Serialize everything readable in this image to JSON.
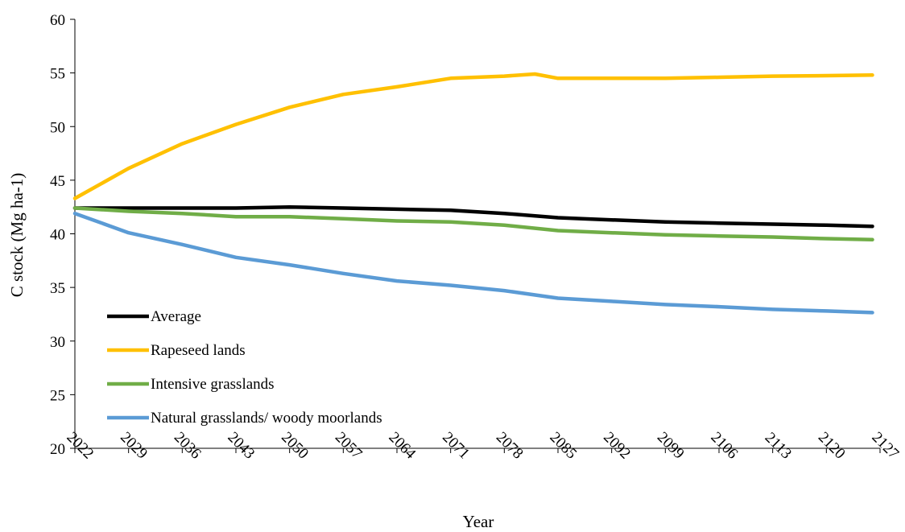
{
  "chart_data": {
    "type": "line",
    "title": "",
    "xlabel": "Year",
    "ylabel": "C stock (Mg ha-1)",
    "xlim": [
      2022,
      2127
    ],
    "ylim": [
      20,
      60
    ],
    "x_ticks": [
      2022,
      2029,
      2036,
      2043,
      2050,
      2057,
      2064,
      2071,
      2078,
      2085,
      2092,
      2099,
      2106,
      2113,
      2120,
      2127
    ],
    "y_ticks": [
      20,
      25,
      30,
      35,
      40,
      45,
      50,
      55,
      60
    ],
    "grid": false,
    "legend_position": "bottom-left",
    "series": [
      {
        "name": "Average",
        "color": "#000000",
        "x": [
          2022,
          2029,
          2036,
          2043,
          2050,
          2057,
          2064,
          2071,
          2078,
          2085,
          2092,
          2099,
          2106,
          2113,
          2120,
          2126
        ],
        "values": [
          42.4,
          42.4,
          42.4,
          42.4,
          42.5,
          42.4,
          42.3,
          42.2,
          41.9,
          41.5,
          41.3,
          41.1,
          41.0,
          40.9,
          40.8,
          40.7
        ]
      },
      {
        "name": "Rapeseed lands",
        "color": "#FFC000",
        "x": [
          2022,
          2029,
          2036,
          2043,
          2050,
          2057,
          2064,
          2071,
          2078,
          2082,
          2085,
          2092,
          2099,
          2106,
          2113,
          2120,
          2126
        ],
        "values": [
          43.3,
          46.1,
          48.4,
          50.2,
          51.8,
          53.0,
          53.7,
          54.5,
          54.7,
          54.9,
          54.5,
          54.5,
          54.5,
          54.6,
          54.7,
          54.75,
          54.8
        ]
      },
      {
        "name": "Intensive grasslands",
        "color": "#70AD47",
        "x": [
          2022,
          2029,
          2036,
          2043,
          2050,
          2057,
          2064,
          2071,
          2078,
          2085,
          2092,
          2099,
          2106,
          2113,
          2120,
          2126
        ],
        "values": [
          42.4,
          42.1,
          41.9,
          41.6,
          41.6,
          41.4,
          41.2,
          41.1,
          40.8,
          40.3,
          40.1,
          39.9,
          39.8,
          39.7,
          39.55,
          39.45
        ]
      },
      {
        "name": "Natural grasslands/ woody moorlands",
        "color": "#5B9BD5",
        "x": [
          2022,
          2029,
          2036,
          2043,
          2050,
          2057,
          2064,
          2071,
          2078,
          2085,
          2092,
          2099,
          2106,
          2113,
          2120,
          2126
        ],
        "values": [
          41.9,
          40.1,
          39.0,
          37.8,
          37.1,
          36.3,
          35.6,
          35.2,
          34.7,
          34.0,
          33.7,
          33.4,
          33.2,
          32.95,
          32.8,
          32.65
        ]
      }
    ]
  }
}
